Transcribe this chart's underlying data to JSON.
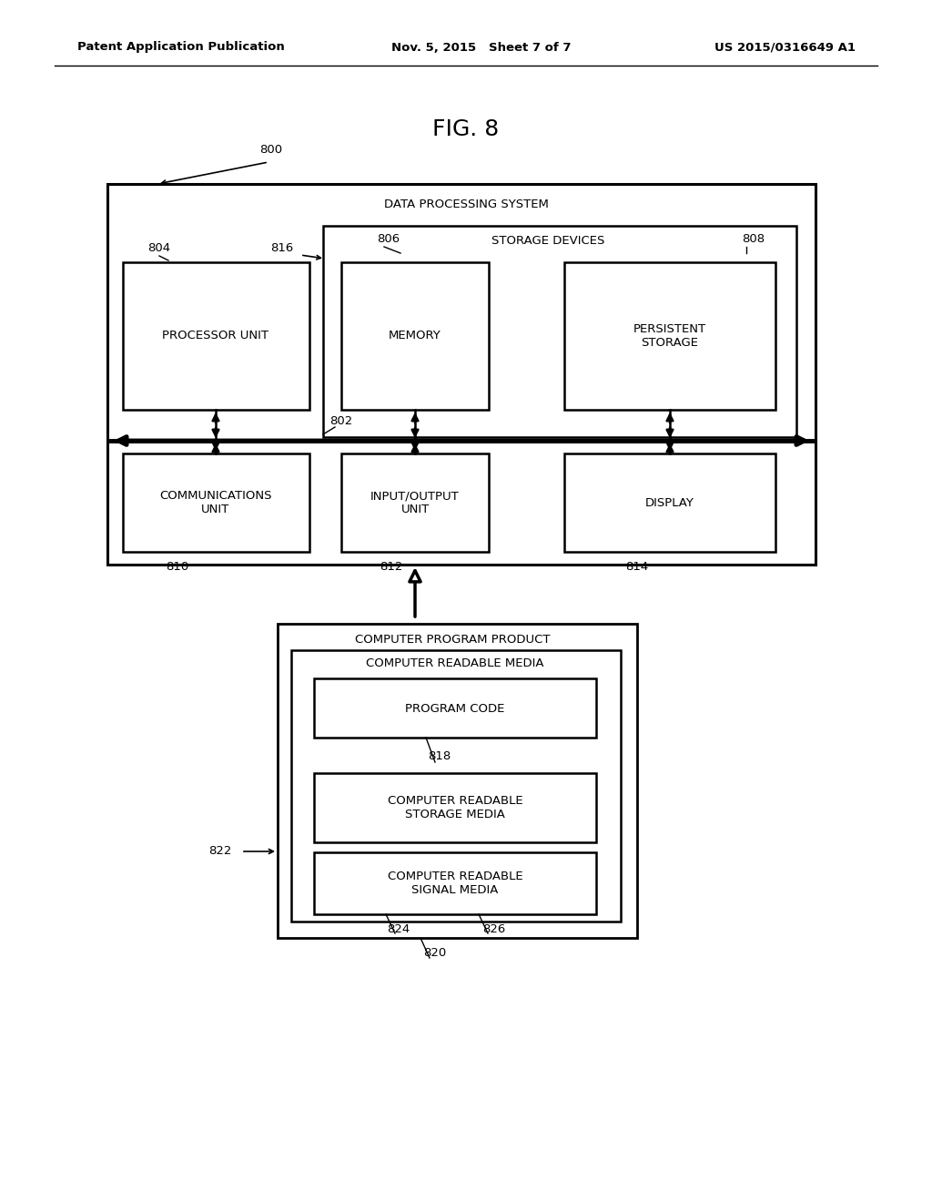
{
  "bg_color": "#ffffff",
  "header_left": "Patent Application Publication",
  "header_mid": "Nov. 5, 2015   Sheet 7 of 7",
  "header_right": "US 2015/0316649 A1",
  "fig_title": "FIG. 8",
  "fig_number": "800",
  "dps_label": "DATA PROCESSING SYSTEM",
  "bus_label": "802",
  "storage_devices_label": "STORAGE DEVICES",
  "processor_unit_label": "PROCESSOR UNIT",
  "memory_label": "MEMORY",
  "persistent_storage_label": "PERSISTENT\nSTORAGE",
  "comm_unit_label": "COMMUNICATIONS\nUNIT",
  "io_unit_label": "INPUT/OUTPUT\nUNIT",
  "display_label": "DISPLAY",
  "labels_804": "804",
  "labels_816": "816",
  "labels_806": "806",
  "labels_808": "808",
  "labels_810": "810",
  "labels_812": "812",
  "labels_814": "814",
  "cpp_label": "COMPUTER PROGRAM PRODUCT",
  "crm_label": "COMPUTER READABLE MEDIA",
  "program_code_label": "PROGRAM CODE",
  "cr_storage_media_label": "COMPUTER READABLE\nSTORAGE MEDIA",
  "cr_signal_media_label": "COMPUTER READABLE\nSIGNAL MEDIA",
  "labels_818": "818",
  "labels_820": "820",
  "labels_822": "822",
  "labels_824": "824",
  "labels_826": "826"
}
